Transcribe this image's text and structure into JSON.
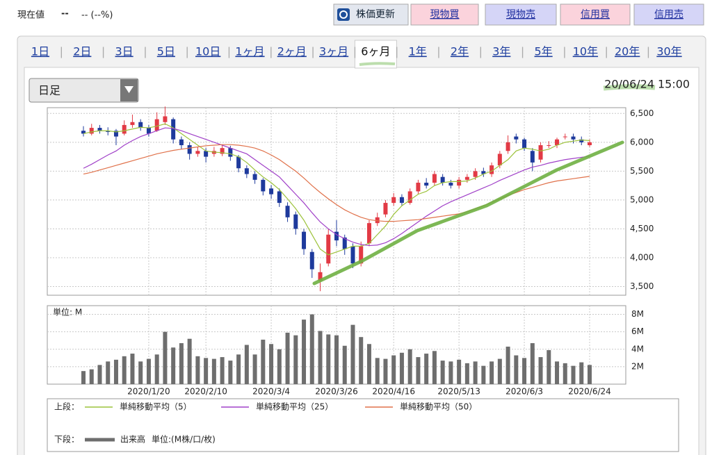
{
  "header": {
    "label": "現在値",
    "price": "--",
    "change": "-- (--%)"
  },
  "buttons": [
    {
      "label": "株価更新",
      "color": "#e3e7ef"
    },
    {
      "label": "現物買",
      "color": "#fbd3dc"
    },
    {
      "label": "現物売",
      "color": "#d5d5f7"
    },
    {
      "label": "信用買",
      "color": "#fbd3dc"
    },
    {
      "label": "信用売",
      "color": "#d5d5f7"
    }
  ],
  "tabs": [
    "1日",
    "2日",
    "3日",
    "5日",
    "10日",
    "1ヶ月",
    "2ヶ月",
    "3ヶ月",
    "6ヶ月",
    "1年",
    "2年",
    "3年",
    "5年",
    "10年",
    "20年",
    "30年"
  ],
  "active_tab": 8,
  "chart_data": {
    "type": "candlestick",
    "interval": "日足",
    "date_label": "20/06/24",
    "time_label": "15:00",
    "categories": [
      null,
      null,
      null,
      null,
      null,
      null,
      null,
      null,
      "2020/1/20",
      null,
      null,
      null,
      null,
      null,
      null,
      "2020/2/10",
      null,
      null,
      null,
      null,
      null,
      null,
      null,
      "2020/3/4",
      null,
      null,
      null,
      null,
      null,
      null,
      null,
      "2020/3/26",
      null,
      null,
      null,
      null,
      null,
      null,
      "2020/4/16",
      null,
      null,
      null,
      null,
      null,
      null,
      null,
      "2020/5/13",
      null,
      null,
      null,
      null,
      null,
      null,
      null,
      "2020/6/3",
      null,
      null,
      null,
      null,
      null,
      null,
      null,
      "2020/6/24"
    ],
    "open": [
      6200,
      6150,
      6250,
      6200,
      6200,
      6150,
      6300,
      6350,
      6250,
      6200,
      6350,
      6400,
      6050,
      5950,
      5800,
      5850,
      5800,
      5800,
      5900,
      5750,
      5550,
      5450,
      5350,
      5200,
      5150,
      4900,
      4750,
      4450,
      4100,
      3600,
      3900,
      4450,
      4350,
      4200,
      3900,
      4250,
      4600,
      4750,
      4950,
      5050,
      4950,
      5150,
      5300,
      5300,
      5400,
      5300,
      5250,
      5350,
      5400,
      5500,
      5450,
      5600,
      5850,
      6100,
      6050,
      5850,
      5700,
      5950,
      5950,
      6100,
      6100,
      6050,
      5950
    ],
    "high": [
      6280,
      6320,
      6300,
      6260,
      6230,
      6380,
      6480,
      6400,
      6300,
      6520,
      6620,
      6430,
      6100,
      6000,
      5920,
      5900,
      5920,
      5960,
      5940,
      5780,
      5600,
      5500,
      5380,
      5260,
      5200,
      4960,
      4800,
      4500,
      4150,
      3900,
      4500,
      4650,
      4400,
      4250,
      4280,
      4650,
      4780,
      5000,
      5120,
      5100,
      5200,
      5350,
      5380,
      5500,
      5450,
      5350,
      5400,
      5450,
      5550,
      5560,
      5650,
      5850,
      6120,
      6150,
      6080,
      5900,
      6000,
      6020,
      6080,
      6150,
      6150,
      6100,
      6050
    ],
    "low": [
      6100,
      6120,
      6150,
      6120,
      5950,
      6120,
      6250,
      6200,
      6100,
      6180,
      6300,
      5980,
      5880,
      5700,
      5750,
      5650,
      5750,
      5760,
      5680,
      5480,
      5380,
      5280,
      5080,
      5020,
      4880,
      4620,
      4400,
      4050,
      3650,
      3420,
      3850,
      4200,
      4050,
      3820,
      3850,
      4200,
      4550,
      4700,
      4900,
      4900,
      4920,
      5100,
      5200,
      5250,
      5250,
      5200,
      5200,
      5300,
      5350,
      5400,
      5400,
      5550,
      5800,
      5980,
      5850,
      5500,
      5650,
      5900,
      5900,
      6050,
      5980,
      5950,
      5920
    ],
    "close": [
      6150,
      6250,
      6200,
      6180,
      6100,
      6300,
      6350,
      6250,
      6150,
      6400,
      6450,
      6050,
      5950,
      5800,
      5850,
      5750,
      5850,
      5900,
      5750,
      5550,
      5450,
      5350,
      5150,
      5100,
      4950,
      4700,
      4500,
      4150,
      3800,
      3750,
      4400,
      4300,
      4150,
      3900,
      4200,
      4600,
      4700,
      4950,
      5050,
      4950,
      5150,
      5300,
      5250,
      5450,
      5300,
      5250,
      5350,
      5400,
      5500,
      5450,
      5600,
      5800,
      6000,
      6050,
      5900,
      5650,
      5950,
      5950,
      6050,
      6100,
      6050,
      6000,
      6000
    ],
    "up_color": "#e23a45",
    "down_color": "#1e3a9c",
    "ylim": [
      3350,
      6600
    ],
    "yticks": [
      {
        "value": 3500,
        "label": "3,500"
      },
      {
        "value": 4000,
        "label": "4,000"
      },
      {
        "value": 4500,
        "label": "4,500"
      },
      {
        "value": 5000,
        "label": "5,000"
      },
      {
        "value": 5500,
        "label": "5,500"
      },
      {
        "value": 6000,
        "label": "6,000"
      },
      {
        "value": 6500,
        "label": "6,500"
      }
    ],
    "grid": true,
    "moving_averages": [
      {
        "name": "単純移動平均（5）",
        "color": "#9cc23a",
        "values": [
          6150,
          6180,
          6200,
          6200,
          6180,
          6200,
          6230,
          6260,
          6250,
          6280,
          6320,
          6250,
          6150,
          6050,
          5950,
          5850,
          5830,
          5820,
          5800,
          5750,
          5650,
          5520,
          5400,
          5300,
          5180,
          5020,
          4850,
          4650,
          4400,
          4150,
          4050,
          4100,
          4150,
          4200,
          4200,
          4250,
          4400,
          4550,
          4750,
          4900,
          5000,
          5100,
          5150,
          5250,
          5300,
          5320,
          5320,
          5330,
          5380,
          5450,
          5500,
          5600,
          5700,
          5850,
          5900,
          5880,
          5850,
          5880,
          5950,
          6000,
          6020,
          6040,
          6030
        ]
      },
      {
        "name": "単純移動平均（25）",
        "color": "#a040c8",
        "values": [
          5550,
          5620,
          5700,
          5780,
          5850,
          5950,
          6030,
          6100,
          6150,
          6200,
          6250,
          6240,
          6200,
          6150,
          6100,
          6050,
          6000,
          5950,
          5900,
          5850,
          5800,
          5700,
          5600,
          5500,
          5400,
          5250,
          5100,
          4950,
          4780,
          4620,
          4500,
          4400,
          4330,
          4270,
          4230,
          4210,
          4220,
          4260,
          4330,
          4420,
          4520,
          4620,
          4720,
          4810,
          4900,
          4970,
          5030,
          5090,
          5150,
          5210,
          5270,
          5340,
          5400,
          5460,
          5520,
          5570,
          5600,
          5640,
          5670,
          5700,
          5720,
          5740,
          5760
        ]
      },
      {
        "name": "単純移動平均（50）",
        "color": "#e0714a",
        "values": [
          5450,
          5480,
          5520,
          5560,
          5600,
          5640,
          5680,
          5720,
          5760,
          5800,
          5830,
          5860,
          5880,
          5900,
          5920,
          5940,
          5950,
          5960,
          5960,
          5950,
          5930,
          5900,
          5850,
          5780,
          5700,
          5600,
          5500,
          5380,
          5250,
          5130,
          5020,
          4920,
          4830,
          4760,
          4700,
          4660,
          4640,
          4630,
          4630,
          4640,
          4650,
          4660,
          4680,
          4700,
          4720,
          4740,
          4760,
          4800,
          4850,
          4900,
          4960,
          5020,
          5080,
          5130,
          5180,
          5220,
          5260,
          5300,
          5330,
          5350,
          5370,
          5390,
          5410
        ]
      }
    ],
    "volume": {
      "name": "出来高",
      "unit_label": "単位: M",
      "legend_unit": "単位:(M株/口/枚)",
      "color": "#6e6e6e",
      "values": [
        1.5,
        1.7,
        2.2,
        2.6,
        2.8,
        3.2,
        3.5,
        2.6,
        2.9,
        3.4,
        6.0,
        4.2,
        4.7,
        5.2,
        3.2,
        3.0,
        2.9,
        3.1,
        2.7,
        3.4,
        4.5,
        3.4,
        5.1,
        4.6,
        4.0,
        5.9,
        5.6,
        7.4,
        8.0,
        6.1,
        5.7,
        5.6,
        4.4,
        6.8,
        5.4,
        4.6,
        3.0,
        2.9,
        3.3,
        3.6,
        4.0,
        3.1,
        3.5,
        3.8,
        2.7,
        2.6,
        2.8,
        2.4,
        2.6,
        2.1,
        2.6,
        2.9,
        4.3,
        3.3,
        3.0,
        4.7,
        3.1,
        3.9,
        2.6,
        2.4,
        2.1,
        2.5,
        2.2
      ],
      "ylim": [
        0,
        9
      ],
      "yticks": [
        {
          "value": 2,
          "label": "2M"
        },
        {
          "value": 4,
          "label": "4M"
        },
        {
          "value": 6,
          "label": "6M"
        },
        {
          "value": 8,
          "label": "8M"
        }
      ]
    },
    "legend": {
      "upper_label": "上段：",
      "lower_label": "下段："
    }
  }
}
